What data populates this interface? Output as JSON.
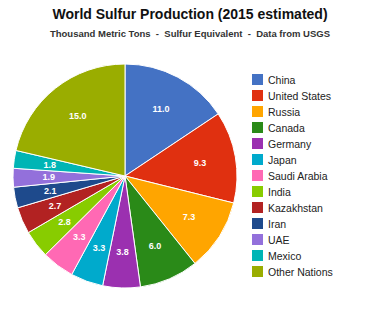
{
  "chart_data": {
    "type": "pie",
    "title": "World Sulfur Production (2015 estimated)",
    "subtitle": "Thousand Metric Tons  -  Sulfur Equivalent  -  Data from USGS",
    "categories": [
      "China",
      "United States",
      "Russia",
      "Canada",
      "Germany",
      "Japan",
      "Saudi Arabia",
      "India",
      "Kazakhstan",
      "Iran",
      "UAE",
      "Mexico",
      "Other Nations"
    ],
    "values": [
      11.0,
      9.3,
      7.3,
      6.0,
      3.8,
      3.3,
      3.3,
      2.8,
      2.7,
      2.1,
      1.9,
      1.8,
      15.0
    ],
    "value_labels": [
      "11.0",
      "9.3",
      "7.3",
      "6.0",
      "3.8",
      "3.3",
      "3.3",
      "2.8",
      "2.7",
      "2.1",
      "1.9",
      "1.8",
      "15.0"
    ],
    "colors": [
      "#4472C4",
      "#E03010",
      "#FFA500",
      "#2A8A18",
      "#9B30B0",
      "#00AACC",
      "#FF69B4",
      "#88CC00",
      "#B22222",
      "#1E4A8C",
      "#9370DB",
      "#00B5B5",
      "#9AAD00"
    ],
    "data_labels": true,
    "legend": "right"
  }
}
